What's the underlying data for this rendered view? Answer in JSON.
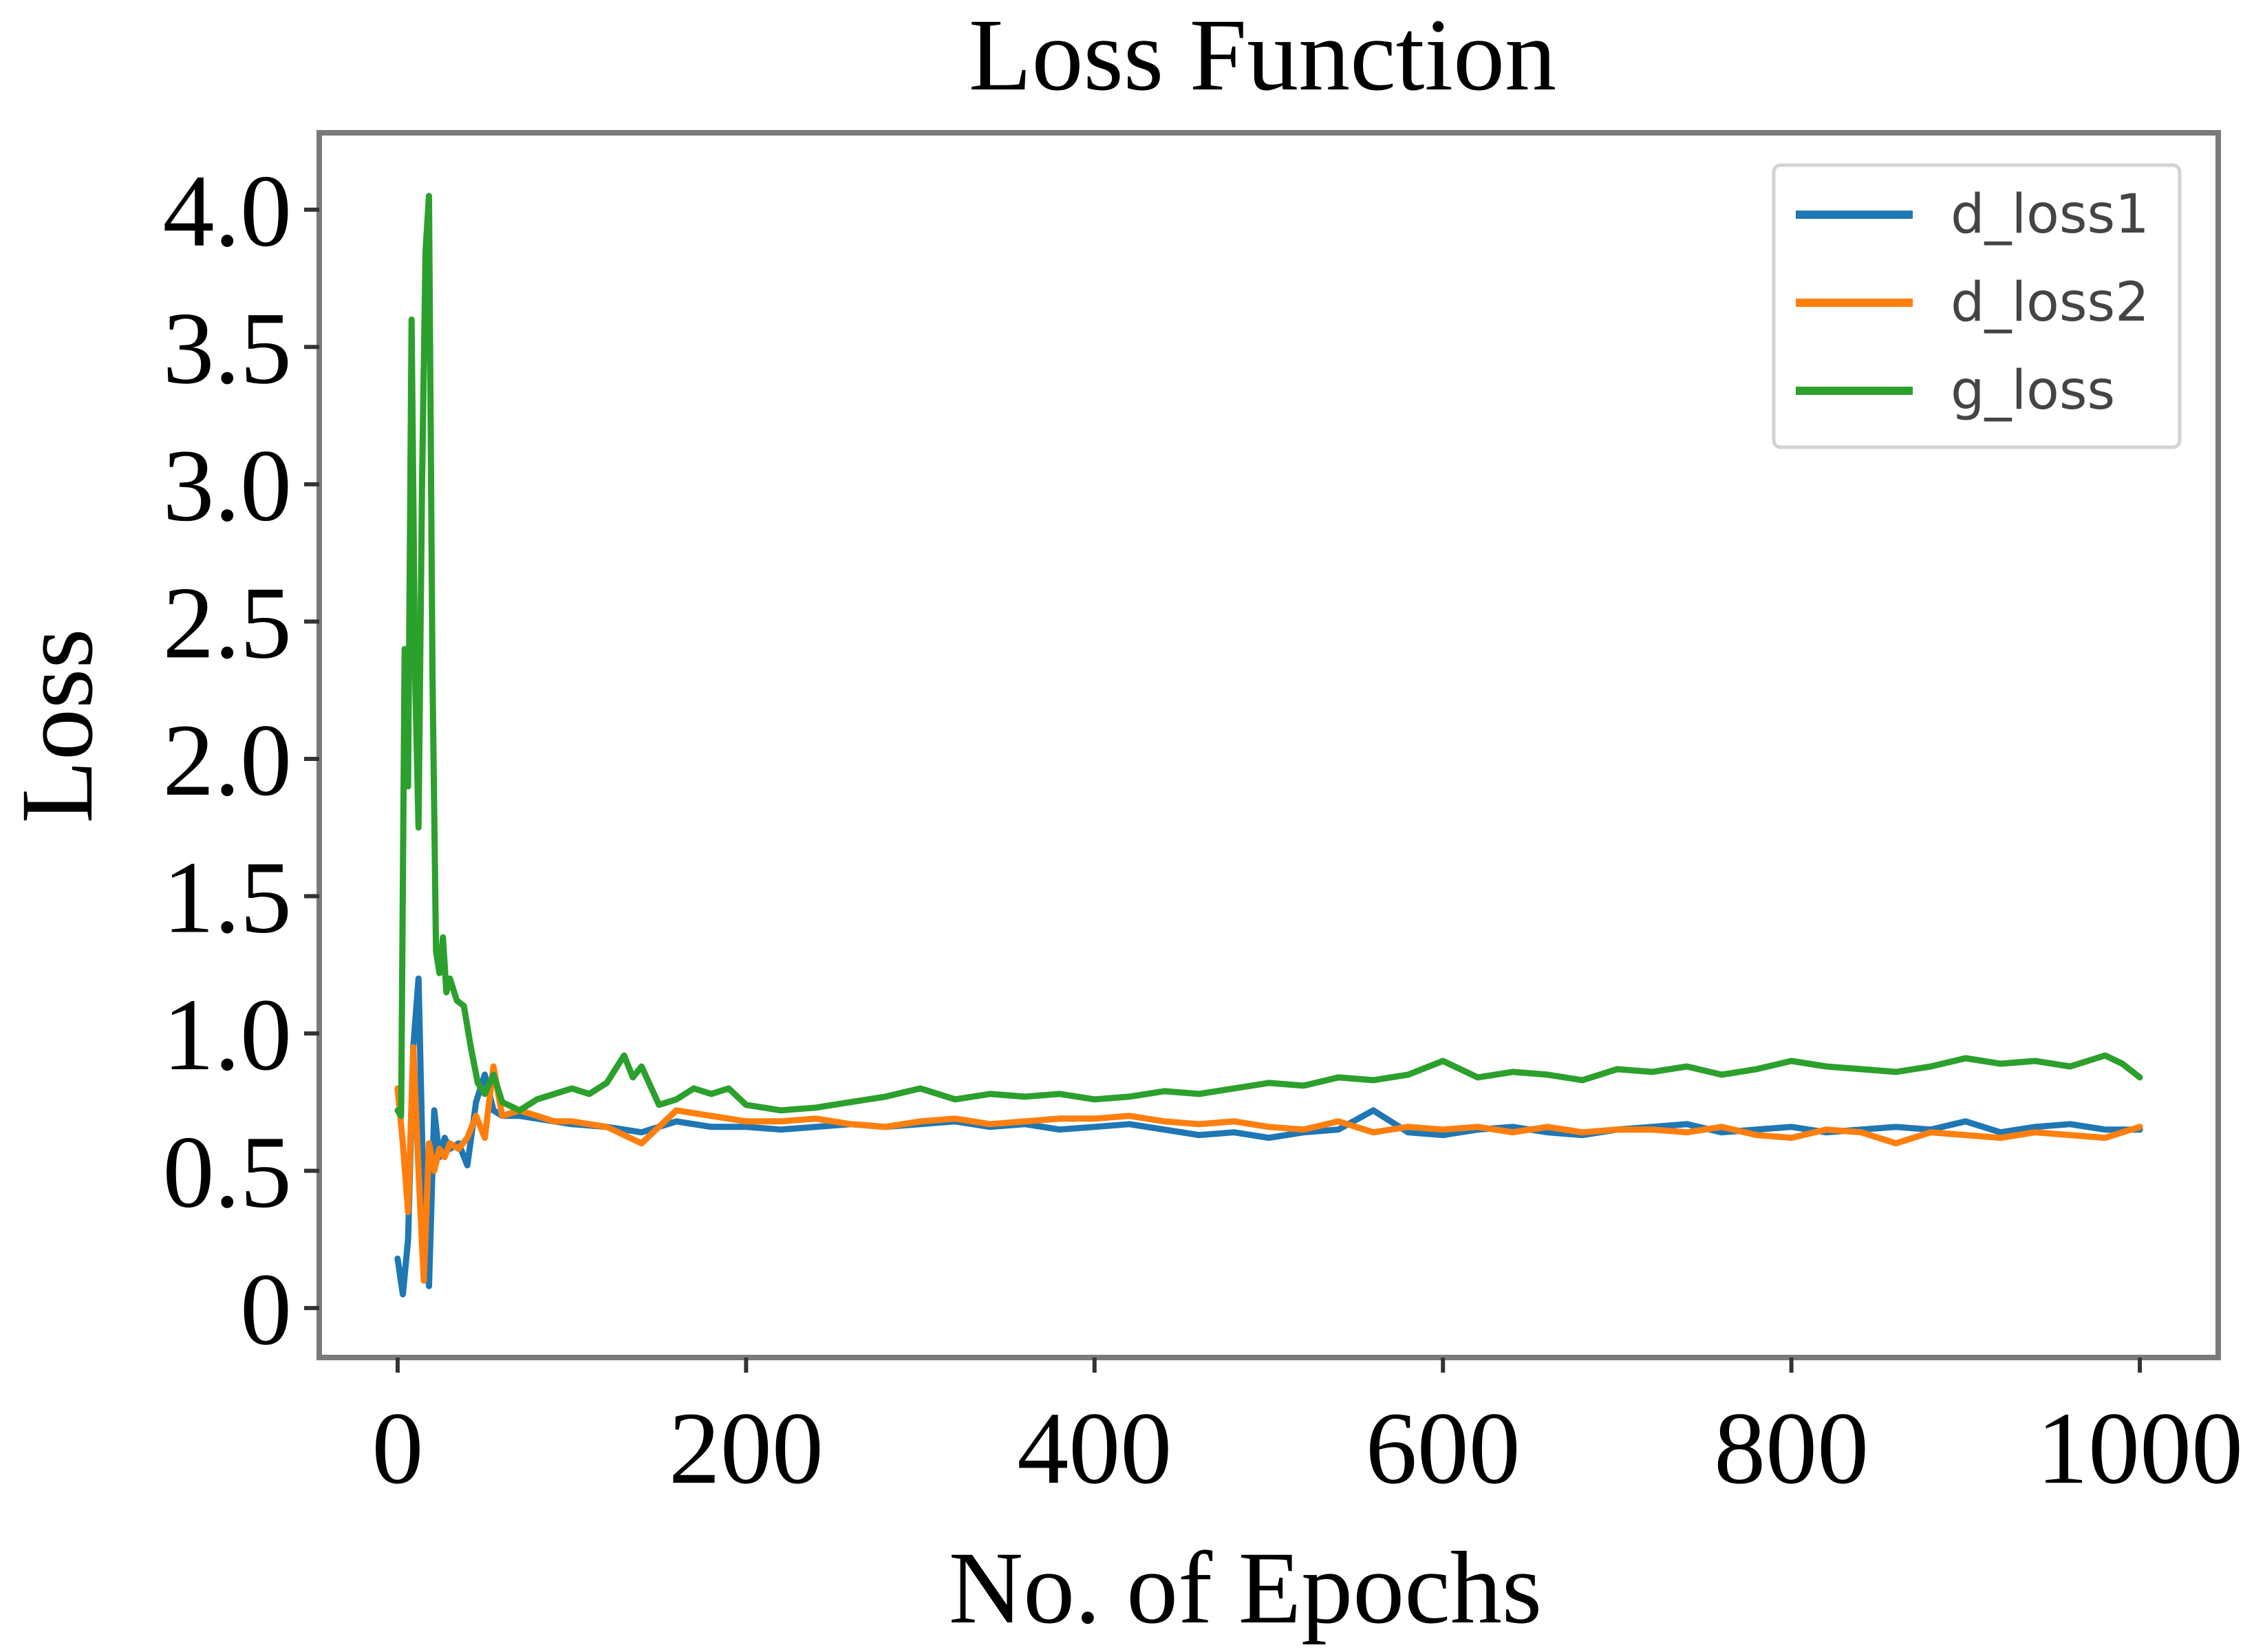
{
  "chart_data": {
    "type": "line",
    "title": "Loss Function",
    "xlabel": "No. of Epochs",
    "ylabel": "Loss",
    "xlim": [
      -45,
      1045
    ],
    "ylim": [
      -0.18,
      4.28
    ],
    "xticks": [
      0,
      200,
      400,
      600,
      800,
      1000
    ],
    "xtick_labels": [
      "0",
      "200",
      "400",
      "600",
      "800",
      "1000"
    ],
    "yticks": [
      0,
      0.5,
      1.0,
      1.5,
      2.0,
      2.5,
      3.0,
      3.5,
      4.0
    ],
    "ytick_labels": [
      "0",
      "0.5",
      "1.0",
      "1.5",
      "2.0",
      "2.5",
      "3.0",
      "3.5",
      "4.0"
    ],
    "legend_position": "top-right",
    "grid": false,
    "series": [
      {
        "name": "d_loss1",
        "color": "#1f77b4",
        "x": [
          0,
          3,
          6,
          9,
          12,
          15,
          18,
          21,
          24,
          27,
          30,
          35,
          40,
          45,
          50,
          55,
          60,
          70,
          80,
          90,
          100,
          120,
          140,
          160,
          180,
          200,
          220,
          240,
          260,
          280,
          300,
          320,
          340,
          360,
          380,
          400,
          420,
          440,
          460,
          480,
          500,
          520,
          540,
          560,
          580,
          600,
          620,
          640,
          660,
          680,
          700,
          720,
          740,
          760,
          780,
          800,
          820,
          840,
          860,
          880,
          900,
          920,
          940,
          960,
          980,
          1000
        ],
        "y": [
          0.18,
          0.05,
          0.25,
          0.95,
          1.2,
          0.35,
          0.08,
          0.72,
          0.55,
          0.62,
          0.58,
          0.6,
          0.52,
          0.75,
          0.85,
          0.72,
          0.7,
          0.7,
          0.69,
          0.68,
          0.67,
          0.66,
          0.64,
          0.68,
          0.66,
          0.66,
          0.65,
          0.66,
          0.67,
          0.66,
          0.67,
          0.68,
          0.66,
          0.67,
          0.65,
          0.66,
          0.67,
          0.65,
          0.63,
          0.64,
          0.62,
          0.64,
          0.65,
          0.72,
          0.64,
          0.63,
          0.65,
          0.66,
          0.64,
          0.63,
          0.65,
          0.66,
          0.67,
          0.64,
          0.65,
          0.66,
          0.64,
          0.65,
          0.66,
          0.65,
          0.68,
          0.64,
          0.66,
          0.67,
          0.65,
          0.65
        ]
      },
      {
        "name": "d_loss2",
        "color": "#ff7f0e",
        "x": [
          0,
          3,
          6,
          9,
          12,
          15,
          18,
          21,
          24,
          27,
          30,
          35,
          40,
          45,
          50,
          55,
          60,
          70,
          80,
          90,
          100,
          120,
          140,
          160,
          180,
          200,
          220,
          240,
          260,
          280,
          300,
          320,
          340,
          360,
          380,
          400,
          420,
          440,
          460,
          480,
          500,
          520,
          540,
          560,
          580,
          600,
          620,
          640,
          660,
          680,
          700,
          720,
          740,
          760,
          780,
          800,
          820,
          840,
          860,
          880,
          900,
          920,
          940,
          960,
          980,
          1000
        ],
        "y": [
          0.8,
          0.6,
          0.35,
          0.95,
          0.5,
          0.1,
          0.6,
          0.5,
          0.58,
          0.55,
          0.6,
          0.58,
          0.62,
          0.7,
          0.62,
          0.88,
          0.7,
          0.72,
          0.7,
          0.68,
          0.68,
          0.66,
          0.6,
          0.72,
          0.7,
          0.68,
          0.68,
          0.69,
          0.67,
          0.66,
          0.68,
          0.69,
          0.67,
          0.68,
          0.69,
          0.69,
          0.7,
          0.68,
          0.67,
          0.68,
          0.66,
          0.65,
          0.68,
          0.64,
          0.66,
          0.65,
          0.66,
          0.64,
          0.66,
          0.64,
          0.65,
          0.65,
          0.64,
          0.66,
          0.63,
          0.62,
          0.65,
          0.64,
          0.6,
          0.64,
          0.63,
          0.62,
          0.64,
          0.63,
          0.62,
          0.66
        ]
      },
      {
        "name": "g_loss",
        "color": "#2ca02c",
        "x": [
          0,
          2,
          4,
          6,
          8,
          10,
          12,
          14,
          16,
          18,
          20,
          22,
          24,
          26,
          28,
          30,
          34,
          38,
          42,
          46,
          50,
          55,
          60,
          70,
          80,
          90,
          100,
          110,
          120,
          130,
          135,
          140,
          150,
          160,
          170,
          180,
          190,
          200,
          220,
          240,
          260,
          280,
          300,
          320,
          340,
          360,
          380,
          400,
          420,
          440,
          460,
          480,
          500,
          520,
          540,
          560,
          580,
          600,
          620,
          640,
          660,
          680,
          700,
          720,
          740,
          760,
          780,
          800,
          820,
          840,
          860,
          880,
          900,
          920,
          940,
          960,
          980,
          990,
          1000
        ],
        "y": [
          0.72,
          0.7,
          2.4,
          1.9,
          3.6,
          2.3,
          1.75,
          3.0,
          3.85,
          4.05,
          2.3,
          1.3,
          1.22,
          1.35,
          1.15,
          1.2,
          1.12,
          1.1,
          0.95,
          0.82,
          0.78,
          0.85,
          0.75,
          0.72,
          0.76,
          0.78,
          0.8,
          0.78,
          0.82,
          0.92,
          0.84,
          0.88,
          0.74,
          0.76,
          0.8,
          0.78,
          0.8,
          0.74,
          0.72,
          0.73,
          0.75,
          0.77,
          0.8,
          0.76,
          0.78,
          0.77,
          0.78,
          0.76,
          0.77,
          0.79,
          0.78,
          0.8,
          0.82,
          0.81,
          0.84,
          0.83,
          0.85,
          0.9,
          0.84,
          0.86,
          0.85,
          0.83,
          0.87,
          0.86,
          0.88,
          0.85,
          0.87,
          0.9,
          0.88,
          0.87,
          0.86,
          0.88,
          0.91,
          0.89,
          0.9,
          0.88,
          0.92,
          0.89,
          0.84
        ]
      }
    ]
  }
}
